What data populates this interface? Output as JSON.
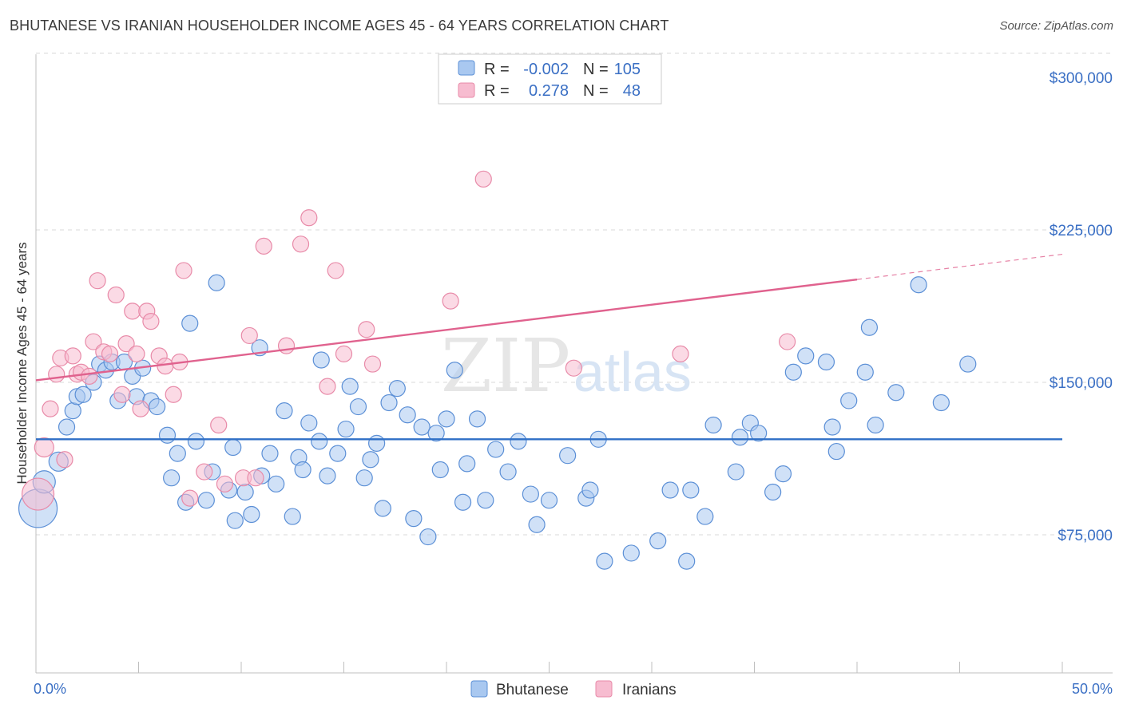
{
  "header": {
    "title": "BHUTANESE VS IRANIAN HOUSEHOLDER INCOME AGES 45 - 64 YEARS CORRELATION CHART",
    "source": "Source: ZipAtlas.com"
  },
  "watermark": {
    "zip": "ZIP",
    "atlas": "atlas"
  },
  "colors": {
    "blue_fill": "#a9c8f0",
    "blue_stroke": "#5b8fd6",
    "blue_line": "#2f6fc6",
    "pink_fill": "#f7bcd0",
    "pink_stroke": "#e88aa8",
    "pink_line": "#e0628e",
    "grid": "#d8d8d8",
    "axis_text": "#3a6fc4"
  },
  "legend": {
    "rows": [
      {
        "r_label": "R =",
        "r_value": "-0.002",
        "n_label": "N =",
        "n_value": "105"
      },
      {
        "r_label": "R =",
        "r_value": "0.278",
        "n_label": "N =",
        "n_value": "48"
      }
    ]
  },
  "bottom_legend": [
    "Bhutanese",
    "Iranians"
  ],
  "chart_data": {
    "type": "scatter",
    "title": "BHUTANESE VS IRANIAN HOUSEHOLDER INCOME AGES 45 - 64 YEARS CORRELATION CHART",
    "ylabel": "Householder Income Ages 45 - 64 years",
    "xlabel": "",
    "x_ticks": [
      "0.0%",
      "50.0%"
    ],
    "y_ticks": [
      "$300,000",
      "$225,000",
      "$150,000",
      "$75,000"
    ],
    "y_tick_values": [
      300000,
      225000,
      150000,
      75000
    ],
    "xlim": [
      0,
      50
    ],
    "ylim": [
      0,
      310000
    ],
    "series": [
      {
        "name": "Bhutanese",
        "r": -0.002,
        "n": 105,
        "trend": {
          "x0": 0,
          "y0": 122000,
          "x1": 50,
          "y1": 122000,
          "dashed_from": null
        },
        "points": [
          [
            0.1,
            88000,
            24
          ],
          [
            0.4,
            101000,
            14
          ],
          [
            1.1,
            111000,
            12
          ],
          [
            1.5,
            128000,
            10
          ],
          [
            1.8,
            136000,
            10
          ],
          [
            2.0,
            143000,
            10
          ],
          [
            2.3,
            144000,
            10
          ],
          [
            2.8,
            150000,
            10
          ],
          [
            3.1,
            159000,
            10
          ],
          [
            3.4,
            156000,
            10
          ],
          [
            3.7,
            160000,
            10
          ],
          [
            4.0,
            141000,
            10
          ],
          [
            4.3,
            160000,
            10
          ],
          [
            4.7,
            153000,
            10
          ],
          [
            4.9,
            143000,
            10
          ],
          [
            5.2,
            157000,
            10
          ],
          [
            5.6,
            141000,
            10
          ],
          [
            5.9,
            138000,
            10
          ],
          [
            6.4,
            124000,
            10
          ],
          [
            6.6,
            103000,
            10
          ],
          [
            6.9,
            115000,
            10
          ],
          [
            7.3,
            91000,
            10
          ],
          [
            7.5,
            179000,
            10
          ],
          [
            7.8,
            121000,
            10
          ],
          [
            8.3,
            92000,
            10
          ],
          [
            8.6,
            106000,
            10
          ],
          [
            8.8,
            199000,
            10
          ],
          [
            9.4,
            97000,
            10
          ],
          [
            9.6,
            118000,
            10
          ],
          [
            9.7,
            82000,
            10
          ],
          [
            10.2,
            96000,
            10
          ],
          [
            10.5,
            85000,
            10
          ],
          [
            10.9,
            167000,
            10
          ],
          [
            11.0,
            104000,
            10
          ],
          [
            11.4,
            115000,
            10
          ],
          [
            11.7,
            100000,
            10
          ],
          [
            12.1,
            136000,
            10
          ],
          [
            12.5,
            84000,
            10
          ],
          [
            12.8,
            113000,
            10
          ],
          [
            13.0,
            107000,
            10
          ],
          [
            13.3,
            130000,
            10
          ],
          [
            13.8,
            121000,
            10
          ],
          [
            13.9,
            161000,
            10
          ],
          [
            14.2,
            104000,
            10
          ],
          [
            14.7,
            115000,
            10
          ],
          [
            15.1,
            127000,
            10
          ],
          [
            15.3,
            148000,
            10
          ],
          [
            15.7,
            138000,
            10
          ],
          [
            16.0,
            103000,
            10
          ],
          [
            16.3,
            112000,
            10
          ],
          [
            16.6,
            120000,
            10
          ],
          [
            16.9,
            88000,
            10
          ],
          [
            17.2,
            140000,
            10
          ],
          [
            17.6,
            147000,
            10
          ],
          [
            18.1,
            134000,
            10
          ],
          [
            18.4,
            83000,
            10
          ],
          [
            18.8,
            128000,
            10
          ],
          [
            19.1,
            74000,
            10
          ],
          [
            19.5,
            125000,
            10
          ],
          [
            19.7,
            107000,
            10
          ],
          [
            20.0,
            132000,
            10
          ],
          [
            20.4,
            156000,
            10
          ],
          [
            20.8,
            91000,
            10
          ],
          [
            21.0,
            110000,
            10
          ],
          [
            21.5,
            132000,
            10
          ],
          [
            21.9,
            92000,
            10
          ],
          [
            22.4,
            117000,
            10
          ],
          [
            23.0,
            106000,
            10
          ],
          [
            23.5,
            121000,
            10
          ],
          [
            24.1,
            95000,
            10
          ],
          [
            24.4,
            80000,
            10
          ],
          [
            25.0,
            92000,
            10
          ],
          [
            25.9,
            114000,
            10
          ],
          [
            26.8,
            93000,
            10
          ],
          [
            27.0,
            97000,
            10
          ],
          [
            27.4,
            122000,
            10
          ],
          [
            27.7,
            62000,
            10
          ],
          [
            29.0,
            66000,
            10
          ],
          [
            30.3,
            72000,
            10
          ],
          [
            30.9,
            97000,
            10
          ],
          [
            31.7,
            62000,
            10
          ],
          [
            31.9,
            97000,
            10
          ],
          [
            32.6,
            84000,
            10
          ],
          [
            33.0,
            129000,
            10
          ],
          [
            34.1,
            106000,
            10
          ],
          [
            34.3,
            123000,
            10
          ],
          [
            34.8,
            130000,
            10
          ],
          [
            35.2,
            125000,
            10
          ],
          [
            35.9,
            96000,
            10
          ],
          [
            36.4,
            105000,
            10
          ],
          [
            36.9,
            155000,
            10
          ],
          [
            37.5,
            163000,
            10
          ],
          [
            38.5,
            160000,
            10
          ],
          [
            38.8,
            128000,
            10
          ],
          [
            39.0,
            116000,
            10
          ],
          [
            39.6,
            141000,
            10
          ],
          [
            40.4,
            155000,
            10
          ],
          [
            40.6,
            177000,
            10
          ],
          [
            40.9,
            129000,
            10
          ],
          [
            41.9,
            145000,
            10
          ],
          [
            43.0,
            198000,
            10
          ],
          [
            44.1,
            140000,
            10
          ],
          [
            45.4,
            159000,
            10
          ]
        ]
      },
      {
        "name": "Iranians",
        "r": 0.278,
        "n": 48,
        "trend": {
          "x0": 0,
          "y0": 151000,
          "x1": 50,
          "y1": 213000,
          "dashed_from": 40
        },
        "points": [
          [
            0.1,
            95000,
            20
          ],
          [
            0.4,
            118000,
            12
          ],
          [
            0.7,
            137000,
            10
          ],
          [
            1.0,
            154000,
            10
          ],
          [
            1.2,
            162000,
            10
          ],
          [
            1.4,
            112000,
            10
          ],
          [
            1.8,
            163000,
            10
          ],
          [
            2.0,
            154000,
            10
          ],
          [
            2.2,
            155000,
            10
          ],
          [
            2.6,
            153000,
            10
          ],
          [
            2.8,
            170000,
            10
          ],
          [
            3.0,
            200000,
            10
          ],
          [
            3.3,
            165000,
            10
          ],
          [
            3.6,
            164000,
            10
          ],
          [
            3.9,
            193000,
            10
          ],
          [
            4.2,
            144000,
            10
          ],
          [
            4.4,
            169000,
            10
          ],
          [
            4.7,
            185000,
            10
          ],
          [
            4.9,
            164000,
            10
          ],
          [
            5.1,
            137000,
            10
          ],
          [
            5.4,
            185000,
            10
          ],
          [
            5.6,
            180000,
            10
          ],
          [
            6.0,
            163000,
            10
          ],
          [
            6.3,
            158000,
            10
          ],
          [
            6.7,
            144000,
            10
          ],
          [
            7.0,
            160000,
            10
          ],
          [
            7.2,
            205000,
            10
          ],
          [
            7.5,
            93000,
            10
          ],
          [
            8.2,
            106000,
            10
          ],
          [
            8.9,
            129000,
            10
          ],
          [
            9.2,
            100000,
            10
          ],
          [
            10.1,
            103000,
            10
          ],
          [
            10.4,
            173000,
            10
          ],
          [
            10.7,
            103000,
            10
          ],
          [
            11.1,
            217000,
            10
          ],
          [
            12.2,
            168000,
            10
          ],
          [
            12.9,
            218000,
            10
          ],
          [
            13.3,
            231000,
            10
          ],
          [
            14.2,
            148000,
            10
          ],
          [
            14.6,
            205000,
            10
          ],
          [
            15.0,
            164000,
            10
          ],
          [
            16.1,
            176000,
            10
          ],
          [
            16.4,
            159000,
            10
          ],
          [
            20.2,
            190000,
            10
          ],
          [
            21.8,
            250000,
            10
          ],
          [
            26.2,
            157000,
            10
          ],
          [
            31.4,
            164000,
            10
          ],
          [
            36.6,
            170000,
            10
          ]
        ]
      }
    ],
    "grid": true,
    "legend_position": "top-center"
  }
}
